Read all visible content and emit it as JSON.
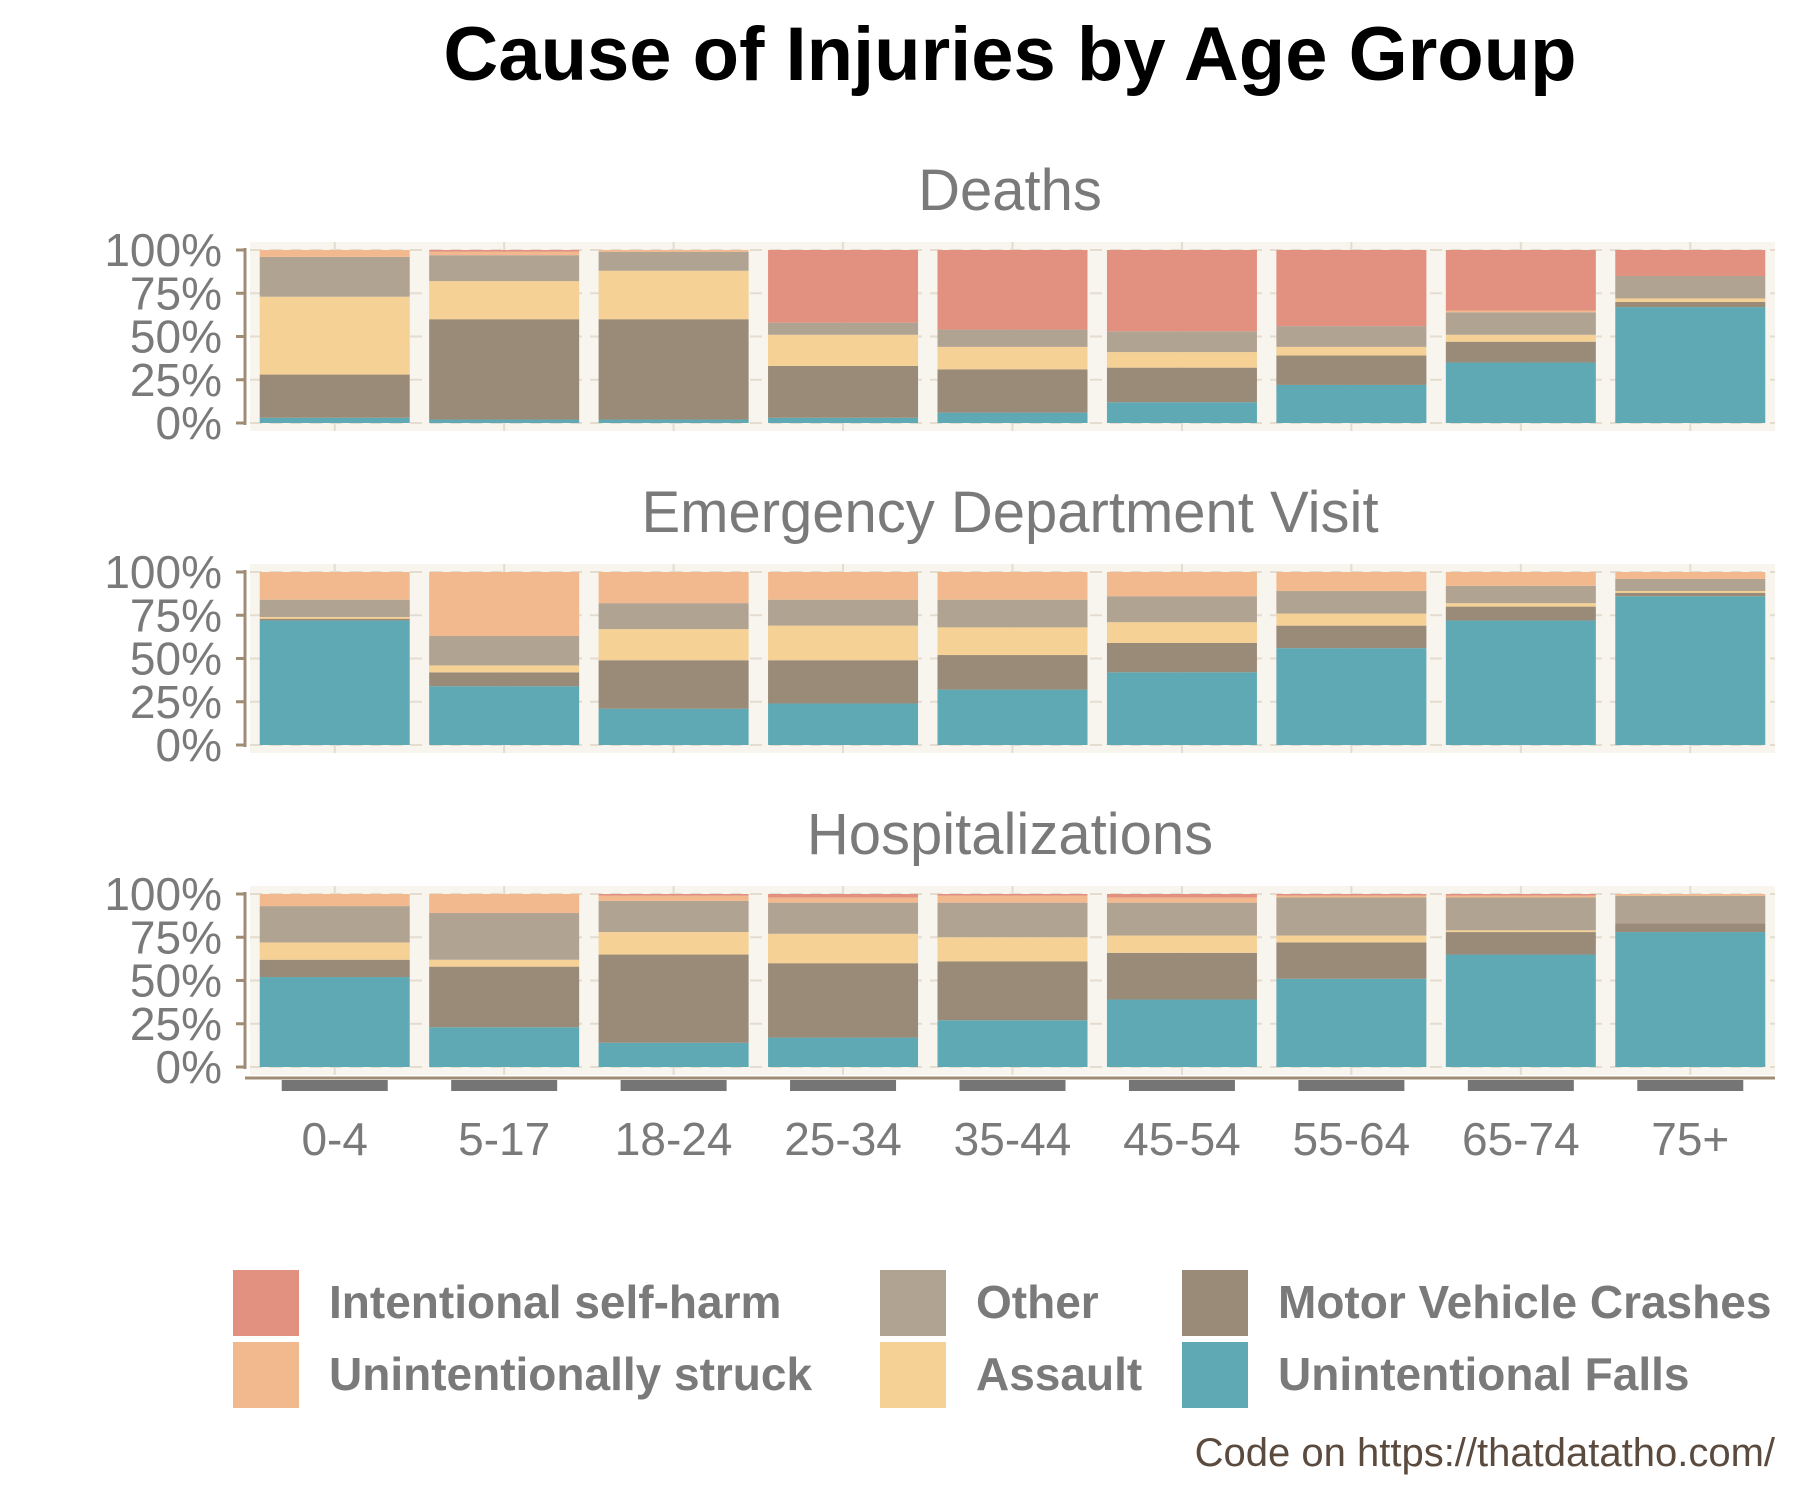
{
  "chart_data": {
    "type": "bar",
    "stacked": true,
    "normalized": true,
    "title": "Cause of Injuries by Age Group",
    "caption": "Code on https://thatdatatho.com/",
    "categories": [
      "0-4",
      "5-17",
      "18-24",
      "25-34",
      "35-44",
      "45-54",
      "55-64",
      "65-74",
      "75+"
    ],
    "y_ticks": [
      "0%",
      "25%",
      "50%",
      "75%",
      "100%"
    ],
    "ylim": [
      0,
      100
    ],
    "grid": true,
    "legend_position": "bottom",
    "legend": [
      {
        "name": "Intentional self-harm",
        "color": "#e2907f"
      },
      {
        "name": "Unintentionally struck",
        "color": "#f2b98f"
      },
      {
        "name": "Other",
        "color": "#b0a392"
      },
      {
        "name": "Assault",
        "color": "#f5d195"
      },
      {
        "name": "Motor Vehicle Crashes",
        "color": "#9a8a78"
      },
      {
        "name": "Unintentional Falls",
        "color": "#5ea9b3"
      }
    ],
    "stack_order_bottom_to_top": [
      "Unintentional Falls",
      "Motor Vehicle Crashes",
      "Assault",
      "Other",
      "Unintentionally struck",
      "Intentional self-harm"
    ],
    "facets": [
      {
        "title": "Deaths",
        "series": {
          "Unintentional Falls": [
            3,
            2,
            2,
            3,
            6,
            12,
            22,
            35,
            67
          ],
          "Motor Vehicle Crashes": [
            25,
            58,
            58,
            30,
            25,
            20,
            17,
            12,
            3
          ],
          "Assault": [
            45,
            22,
            28,
            18,
            13,
            9,
            5,
            4,
            2
          ],
          "Other": [
            23,
            15,
            11,
            7,
            10,
            12,
            12,
            13,
            13
          ],
          "Unintentionally struck": [
            4,
            2,
            1,
            0,
            0,
            0,
            0,
            1,
            0
          ],
          "Intentional self-harm": [
            0,
            1,
            0,
            42,
            46,
            47,
            44,
            35,
            15
          ]
        }
      },
      {
        "title": "Emergency Department Visit",
        "series": {
          "Unintentional Falls": [
            72,
            34,
            21,
            24,
            32,
            42,
            56,
            72,
            86
          ],
          "Motor Vehicle Crashes": [
            1,
            8,
            28,
            25,
            20,
            17,
            13,
            8,
            2
          ],
          "Assault": [
            1,
            4,
            18,
            20,
            16,
            12,
            7,
            2,
            1
          ],
          "Other": [
            10,
            17,
            15,
            15,
            16,
            15,
            13,
            10,
            7
          ],
          "Unintentionally struck": [
            16,
            37,
            18,
            16,
            16,
            14,
            11,
            8,
            4
          ],
          "Intentional self-harm": [
            0,
            0,
            0,
            0,
            0,
            0,
            0,
            0,
            0
          ]
        }
      },
      {
        "title": "Hospitalizations",
        "series": {
          "Unintentional Falls": [
            52,
            23,
            14,
            17,
            27,
            39,
            51,
            65,
            78
          ],
          "Motor Vehicle Crashes": [
            10,
            35,
            51,
            43,
            34,
            27,
            21,
            13,
            5
          ],
          "Assault": [
            10,
            4,
            13,
            17,
            14,
            10,
            4,
            1,
            0
          ],
          "Other": [
            21,
            27,
            18,
            18,
            20,
            19,
            22,
            19,
            16
          ],
          "Unintentionally struck": [
            7,
            11,
            3,
            3,
            4,
            3,
            1,
            1,
            1
          ],
          "Intentional self-harm": [
            0,
            0,
            1,
            2,
            1,
            2,
            1,
            1,
            0
          ]
        }
      }
    ]
  }
}
